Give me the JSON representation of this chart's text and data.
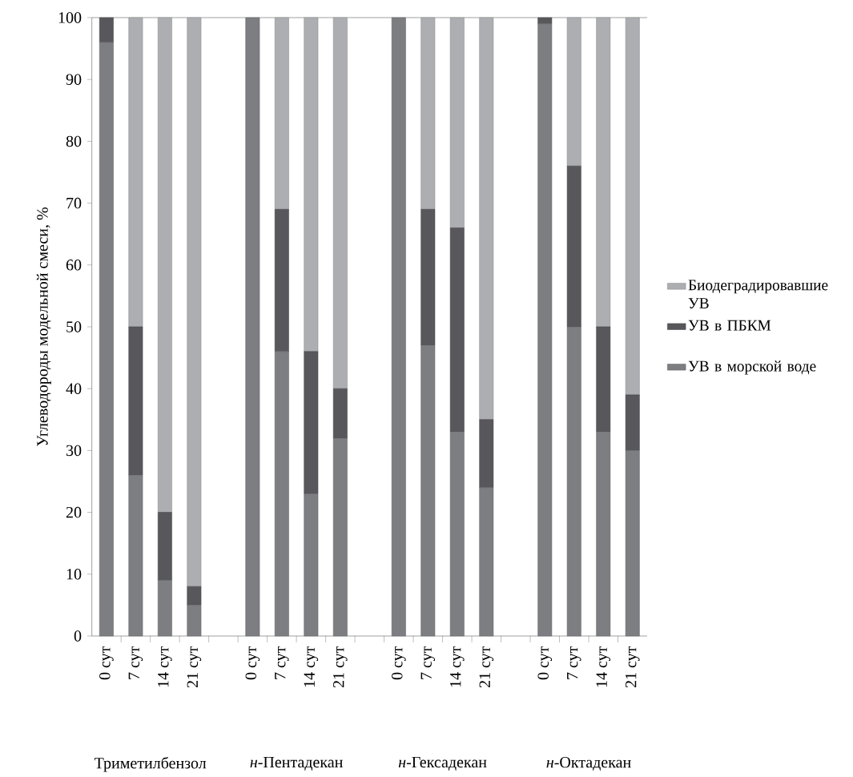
{
  "chart_data": {
    "type": "bar",
    "stacked": true,
    "legend": "right",
    "ylabel": "Углеводороды модельной смеси, %",
    "categories": [
      "0 сут",
      "7 сут",
      "14 сут",
      "21 сут",
      null,
      "0 сут",
      "7 сут",
      "14 сут",
      "21 сут",
      null,
      "0 сут",
      "7 сут",
      "14 сут",
      "21 сут",
      null,
      "0 сут",
      "7 сут",
      "14 сут",
      "21 сут"
    ],
    "series": [
      {
        "name": "УВ в морской воде",
        "color": "#7d7e82",
        "values": [
          96,
          26,
          9,
          5,
          null,
          100,
          46,
          23,
          32,
          null,
          100,
          47,
          33,
          24,
          null,
          99,
          50,
          33,
          30
        ]
      },
      {
        "name": "УВ в ПБКМ",
        "color": "#58585c",
        "values": [
          4,
          24,
          11,
          3,
          null,
          0,
          23,
          23,
          8,
          null,
          0,
          22,
          33,
          11,
          null,
          1,
          26,
          17,
          9
        ]
      },
      {
        "name": "Биодеградировавшие УВ",
        "color": "#adaeb2",
        "values": [
          0,
          50,
          80,
          92,
          null,
          0,
          31,
          54,
          60,
          null,
          0,
          31,
          34,
          65,
          null,
          0,
          24,
          50,
          61
        ]
      }
    ],
    "ylim": [
      0,
      100
    ],
    "yticks": [
      0,
      10,
      20,
      30,
      40,
      50,
      60,
      70,
      80,
      90,
      100
    ],
    "annotations": [
      "Триметилбензол",
      "*н*-Пентадекан",
      "*н*-Гексадекан",
      "*н*-Октадекан"
    ]
  }
}
